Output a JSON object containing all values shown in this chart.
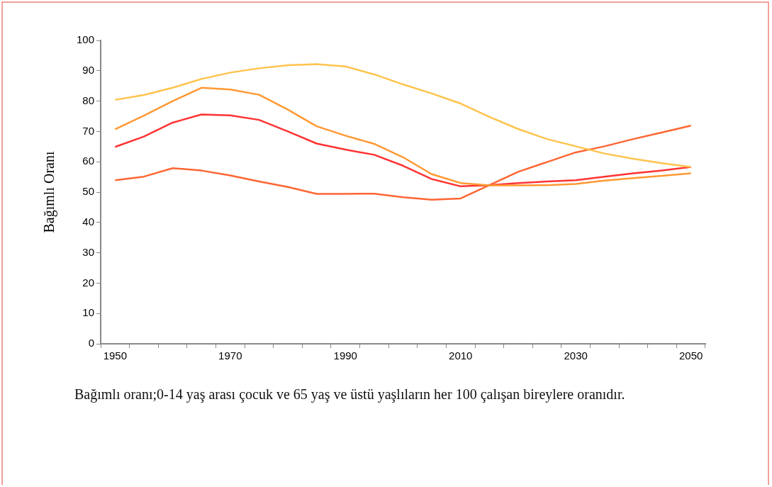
{
  "chart_data": {
    "type": "line",
    "ylabel": "Bağımlı Oranı",
    "categories": [
      "1950",
      null,
      null,
      null,
      "1970",
      null,
      null,
      null,
      "1990",
      null,
      null,
      null,
      "2010",
      null,
      null,
      null,
      "2030",
      null,
      null,
      null,
      "2050"
    ],
    "series": [
      {
        "color": "#ffc34d",
        "values": [
          80.4,
          82.0,
          84.4,
          87.3,
          89.4,
          90.8,
          91.8,
          92.2,
          91.4,
          88.8,
          85.5,
          82.5,
          79.2,
          74.8,
          70.8,
          67.5,
          65.1,
          62.7,
          61.0,
          59.5,
          58.3
        ]
      },
      {
        "color": "#ff9933",
        "values": [
          70.7,
          75.2,
          80.0,
          84.4,
          83.8,
          82.1,
          77.2,
          71.7,
          68.6,
          65.9,
          61.5,
          55.9,
          53.0,
          52.2,
          52.2,
          52.3,
          52.7,
          53.8,
          54.6,
          55.4,
          56.2
        ]
      },
      {
        "color": "#ff3333",
        "values": [
          64.9,
          68.3,
          72.9,
          75.6,
          75.3,
          73.8,
          70.0,
          66.0,
          64.0,
          62.3,
          58.7,
          54.3,
          51.9,
          52.3,
          53.0,
          53.5,
          53.9,
          55.1,
          56.2,
          57.1,
          58.3
        ]
      },
      {
        "color": "#ff6633",
        "values": [
          53.9,
          55.1,
          57.9,
          57.1,
          55.5,
          53.5,
          51.7,
          49.4,
          49.4,
          49.5,
          48.3,
          47.5,
          47.9,
          52.3,
          56.7,
          59.9,
          63.1,
          65.1,
          67.5,
          69.7,
          71.9
        ]
      }
    ],
    "ylim": [
      0,
      100
    ],
    "yticks": [
      0,
      10,
      20,
      30,
      40,
      50,
      60,
      70,
      80,
      90,
      100
    ],
    "grid": false,
    "legend": false,
    "marker": "none",
    "line_style": "solid",
    "annotations": [
      "Bağımlı oranı;0-14 yaş arası çocuk ve 65 yaş ve üstü yaşlıların her 100 çalışan bireylere oranıdır."
    ]
  }
}
